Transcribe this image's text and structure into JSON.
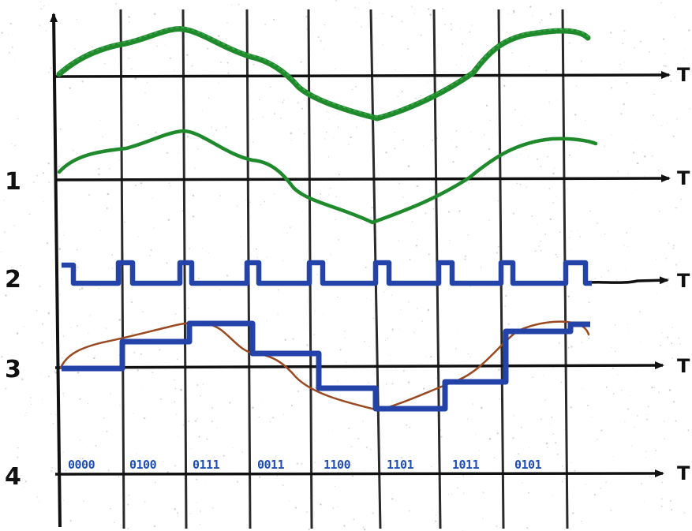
{
  "row_labels": [
    "1",
    "2",
    "3",
    "4"
  ],
  "axis_label": "T",
  "binary_codes": [
    "0000",
    "0100",
    "0111",
    "0011",
    "1100",
    "1101",
    "1011",
    "0101"
  ],
  "colors": {
    "analog_signal": "#1f8a2c",
    "sampling_pulses": "#2343a8",
    "quantized_signal": "#2343a8",
    "original_overlay": "#9a4a20",
    "binary_code": "#1f4fb4",
    "ink": "#111111"
  }
}
